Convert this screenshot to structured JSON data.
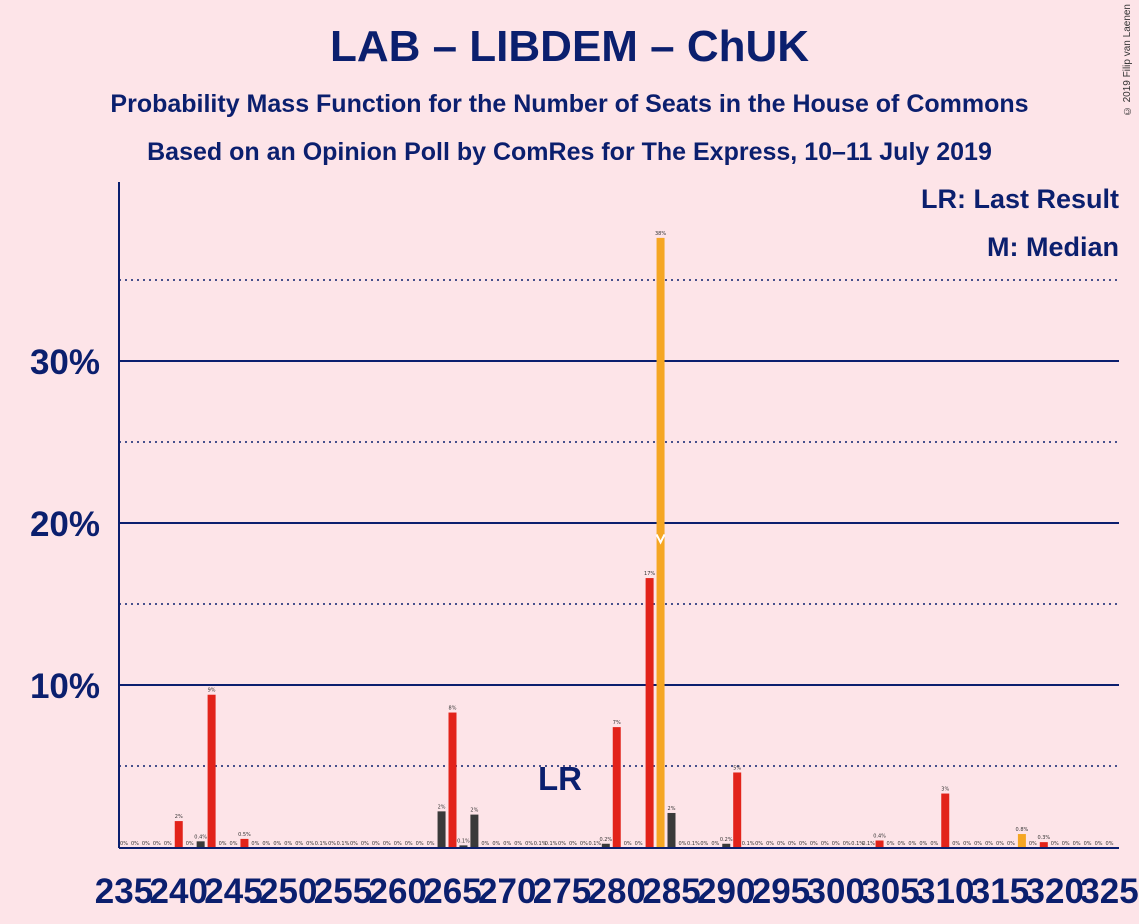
{
  "chart_data": {
    "type": "bar",
    "title": "LAB – LIBDEM – ChUK",
    "subtitle": "Probability Mass Function for the Number of Seats in the House of Commons",
    "subtitle2": "Based on an Opinion Poll by ComRes for The Express, 10–11 July 2019",
    "legend": {
      "lr": "LR: Last Result",
      "m": "M: Median"
    },
    "copyright": "© 2019 Filip van Laenen",
    "lr_label": "LR",
    "lr_seat": 275,
    "median_seat": 283,
    "ylim": [
      0,
      40
    ],
    "y_ticks": [
      {
        "value": 10,
        "label": "10%"
      },
      {
        "value": 20,
        "label": "20%"
      },
      {
        "value": 30,
        "label": "30%"
      }
    ],
    "x_ticks": [
      235,
      240,
      245,
      250,
      255,
      260,
      265,
      270,
      275,
      280,
      285,
      290,
      295,
      300,
      305,
      310,
      315,
      320,
      325
    ],
    "x_min": 235,
    "x_max": 325,
    "bars": [
      {
        "seat": 240,
        "value": 1.6,
        "label": "2%",
        "color": "red"
      },
      {
        "seat": 242,
        "value": 0.35,
        "label": "0.4%",
        "color": "dark"
      },
      {
        "seat": 243,
        "value": 9.4,
        "label": "9%",
        "color": "red"
      },
      {
        "seat": 246,
        "value": 0.5,
        "label": "0.5%",
        "color": "red"
      },
      {
        "seat": 264,
        "value": 2.2,
        "label": "2%",
        "color": "dark"
      },
      {
        "seat": 265,
        "value": 8.3,
        "label": "8%",
        "color": "red"
      },
      {
        "seat": 266,
        "value": 0.1,
        "label": "0.1%",
        "color": "dark"
      },
      {
        "seat": 267,
        "value": 2.0,
        "label": "2%",
        "color": "dark"
      },
      {
        "seat": 279,
        "value": 0.2,
        "label": "0.2%",
        "color": "dark"
      },
      {
        "seat": 280,
        "value": 7.4,
        "label": "7%",
        "color": "red"
      },
      {
        "seat": 283,
        "value": 16.6,
        "label": "17%",
        "color": "red"
      },
      {
        "seat": 284,
        "value": 37.6,
        "label": "38%",
        "color": "orange"
      },
      {
        "seat": 285,
        "value": 2.1,
        "label": "2%",
        "color": "dark"
      },
      {
        "seat": 290,
        "value": 0.2,
        "label": "0.2%",
        "color": "dark"
      },
      {
        "seat": 291,
        "value": 4.6,
        "label": "5%",
        "color": "red"
      },
      {
        "seat": 304,
        "value": 0.4,
        "label": "0.4%",
        "color": "red"
      },
      {
        "seat": 310,
        "value": 3.3,
        "label": "3%",
        "color": "red"
      },
      {
        "seat": 317,
        "value": 0.8,
        "label": "0.8%",
        "color": "orange"
      },
      {
        "seat": 319,
        "value": 0.3,
        "label": "0.3%",
        "color": "red"
      }
    ],
    "small_labels": [
      {
        "seat": 235,
        "label": "0%"
      },
      {
        "seat": 236,
        "label": "0%"
      },
      {
        "seat": 237,
        "label": "0%"
      },
      {
        "seat": 238,
        "label": "0%"
      },
      {
        "seat": 239,
        "label": "0%"
      },
      {
        "seat": 241,
        "label": "0%"
      },
      {
        "seat": 244,
        "label": "0%"
      },
      {
        "seat": 245,
        "label": "0%"
      },
      {
        "seat": 247,
        "label": "0%"
      },
      {
        "seat": 248,
        "label": "0%"
      },
      {
        "seat": 249,
        "label": "0%"
      },
      {
        "seat": 250,
        "label": "0%"
      },
      {
        "seat": 251,
        "label": "0%"
      },
      {
        "seat": 252,
        "label": "0%"
      },
      {
        "seat": 253,
        "label": "0.1%"
      },
      {
        "seat": 254,
        "label": "0%"
      },
      {
        "seat": 255,
        "label": "0.1%"
      },
      {
        "seat": 256,
        "label": "0%"
      },
      {
        "seat": 257,
        "label": "0%"
      },
      {
        "seat": 258,
        "label": "0%"
      },
      {
        "seat": 259,
        "label": "0%"
      },
      {
        "seat": 260,
        "label": "0%"
      },
      {
        "seat": 261,
        "label": "0%"
      },
      {
        "seat": 262,
        "label": "0%"
      },
      {
        "seat": 263,
        "label": "0%"
      },
      {
        "seat": 268,
        "label": "0%"
      },
      {
        "seat": 269,
        "label": "0%"
      },
      {
        "seat": 270,
        "label": "0%"
      },
      {
        "seat": 271,
        "label": "0%"
      },
      {
        "seat": 272,
        "label": "0%"
      },
      {
        "seat": 273,
        "label": "0.1%"
      },
      {
        "seat": 274,
        "label": "0.1%"
      },
      {
        "seat": 275,
        "label": "0%"
      },
      {
        "seat": 276,
        "label": "0%"
      },
      {
        "seat": 277,
        "label": "0%"
      },
      {
        "seat": 278,
        "label": "0.1%"
      },
      {
        "seat": 281,
        "label": "0%"
      },
      {
        "seat": 282,
        "label": "0%"
      },
      {
        "seat": 286,
        "label": "0%"
      },
      {
        "seat": 287,
        "label": "0.1%"
      },
      {
        "seat": 288,
        "label": "0%"
      },
      {
        "seat": 289,
        "label": "0%"
      },
      {
        "seat": 292,
        "label": "0.1%"
      },
      {
        "seat": 293,
        "label": "0%"
      },
      {
        "seat": 294,
        "label": "0%"
      },
      {
        "seat": 295,
        "label": "0%"
      },
      {
        "seat": 296,
        "label": "0%"
      },
      {
        "seat": 297,
        "label": "0%"
      },
      {
        "seat": 298,
        "label": "0%"
      },
      {
        "seat": 299,
        "label": "0%"
      },
      {
        "seat": 300,
        "label": "0%"
      },
      {
        "seat": 301,
        "label": "0%"
      },
      {
        "seat": 302,
        "label": "0.1%"
      },
      {
        "seat": 303,
        "label": "0.1%"
      },
      {
        "seat": 305,
        "label": "0%"
      },
      {
        "seat": 306,
        "label": "0%"
      },
      {
        "seat": 307,
        "label": "0%"
      },
      {
        "seat": 308,
        "label": "0%"
      },
      {
        "seat": 309,
        "label": "0%"
      },
      {
        "seat": 311,
        "label": "0%"
      },
      {
        "seat": 312,
        "label": "0%"
      },
      {
        "seat": 313,
        "label": "0%"
      },
      {
        "seat": 314,
        "label": "0%"
      },
      {
        "seat": 315,
        "label": "0%"
      },
      {
        "seat": 316,
        "label": "0%"
      },
      {
        "seat": 318,
        "label": "0%"
      },
      {
        "seat": 320,
        "label": "0%"
      },
      {
        "seat": 321,
        "label": "0%"
      },
      {
        "seat": 322,
        "label": "0%"
      },
      {
        "seat": 323,
        "label": "0%"
      },
      {
        "seat": 324,
        "label": "0%"
      },
      {
        "seat": 325,
        "label": "0%"
      }
    ],
    "colors": {
      "red": "#e2231a",
      "dark": "#3a3a3a",
      "orange": "#f5a623",
      "axis": "#0b1f6e",
      "background": "#fde4e8"
    }
  }
}
